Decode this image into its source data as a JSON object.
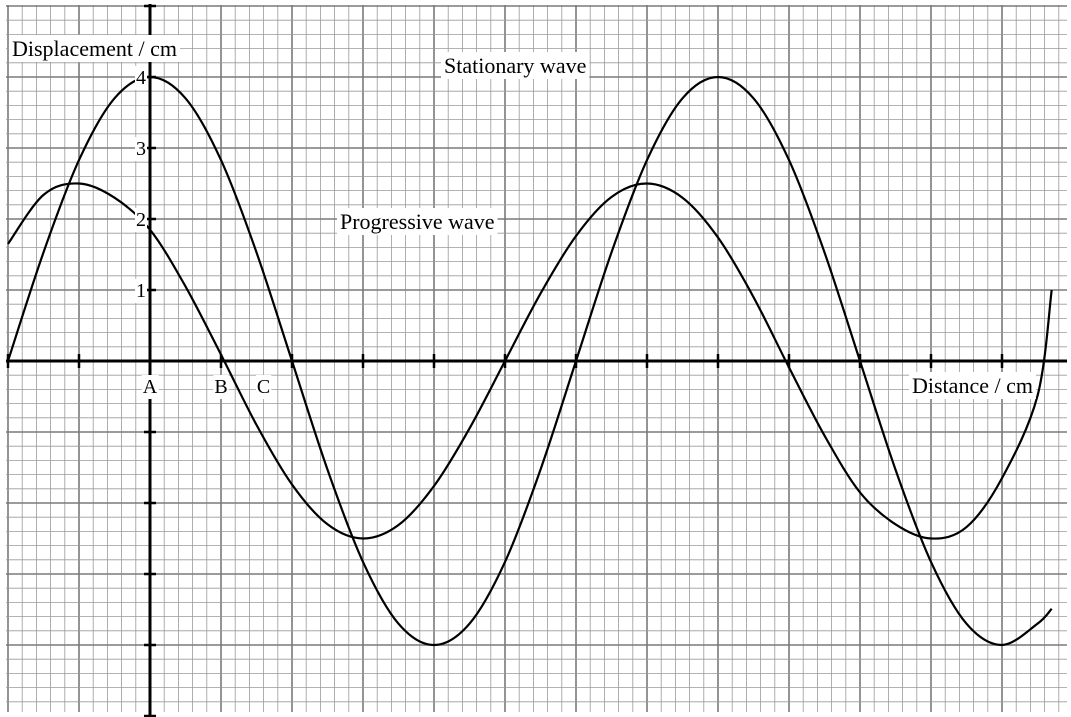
{
  "chart_data": {
    "type": "line",
    "title": "",
    "ylabel": "Displacement / cm",
    "xlabel": "Distance / cm",
    "xlim": [
      -2,
      12.7
    ],
    "ylim": [
      -5,
      5
    ],
    "x_axis_ticks_every": 1,
    "grid": {
      "major_every": 1,
      "minor_every": 0.2
    },
    "y_tick_labels": [
      {
        "value": 1,
        "label": "1"
      },
      {
        "value": 2,
        "label": "2"
      },
      {
        "value": 3,
        "label": "3"
      },
      {
        "value": 4,
        "label": "4"
      }
    ],
    "point_labels": [
      {
        "x": 0,
        "label": "A"
      },
      {
        "x": 1,
        "label": "B"
      },
      {
        "x": 1.6,
        "label": "C"
      }
    ],
    "series": [
      {
        "name": "Stationary wave",
        "x": [
          -2,
          -1.5,
          -1,
          -0.5,
          0,
          0.5,
          1,
          1.5,
          2,
          2.5,
          3,
          3.5,
          4,
          4.5,
          5,
          5.5,
          6,
          6.5,
          7,
          7.5,
          8,
          8.5,
          9,
          9.5,
          10,
          10.5,
          11,
          11.5,
          12,
          12.5,
          12.7
        ],
        "y": [
          0,
          1.53,
          2.83,
          3.7,
          4.0,
          3.7,
          2.83,
          1.53,
          0,
          -1.53,
          -2.83,
          -3.7,
          -4.0,
          -3.7,
          -2.83,
          -1.53,
          0,
          1.53,
          2.83,
          3.7,
          4.0,
          3.7,
          2.83,
          1.53,
          0,
          -1.53,
          -2.83,
          -3.7,
          -4.0,
          -3.7,
          -3.49
        ]
      },
      {
        "name": "Progressive wave",
        "x": [
          -2,
          -1.5,
          -1,
          -0.5,
          0,
          0.5,
          1,
          1.5,
          2,
          2.5,
          3,
          3.5,
          4,
          4.5,
          5,
          5.5,
          6,
          6.5,
          7,
          7.5,
          8,
          8.5,
          9,
          9.5,
          10,
          10.5,
          11,
          11.5,
          12,
          12.5,
          12.7
        ],
        "y": [
          1.65,
          2.34,
          2.5,
          2.3,
          1.85,
          1.05,
          0.09,
          -0.9,
          -1.74,
          -2.3,
          -2.5,
          -2.31,
          -1.76,
          -0.95,
          0,
          0.95,
          1.76,
          2.31,
          2.5,
          2.3,
          1.74,
          0.9,
          -0.09,
          -1.05,
          -1.85,
          -2.3,
          -2.5,
          -2.34,
          -1.65,
          -0.49,
          1.0
        ]
      }
    ]
  }
}
